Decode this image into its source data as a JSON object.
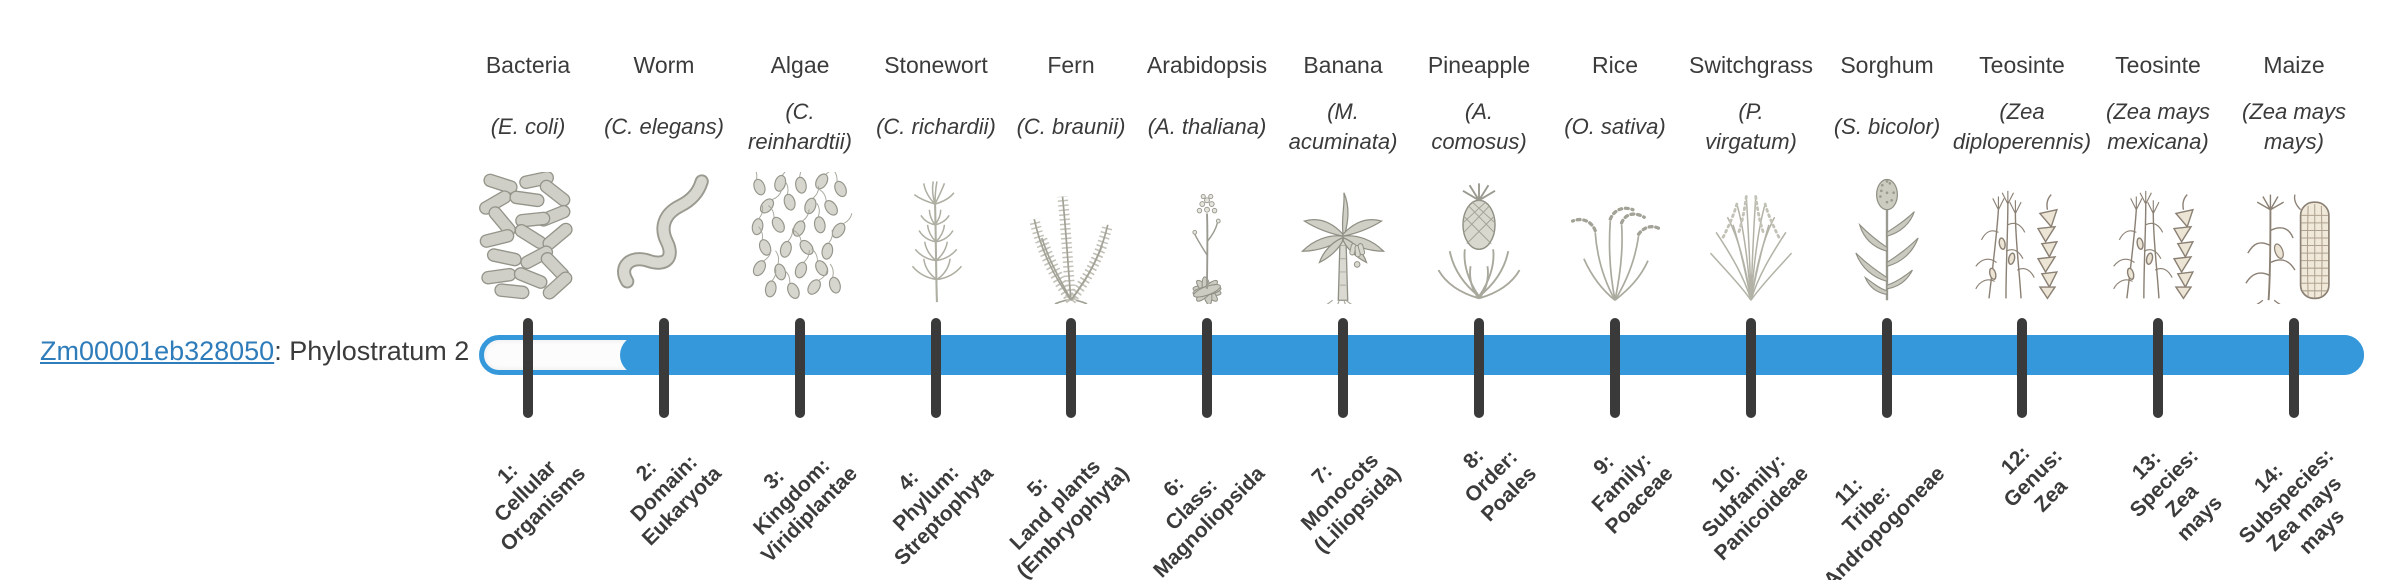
{
  "figure": {
    "gene_link_text": "Zm00001eb328050",
    "gene_suffix": ": Phylostratum 2",
    "phylostratum": 2
  },
  "timeline": {
    "total_strata": 14,
    "filled_from_stratum": 2,
    "bar_color": "#3598db",
    "tick_color": "#3a3a3a",
    "link_color": "#2e7cba",
    "text_color": "#3b3b3b"
  },
  "organisms": [
    {
      "label": "Bacteria",
      "sci_name": "(E. coli)",
      "icon": "bacteria-icon",
      "stratum_label": "1:\nCellular\nOrganisms"
    },
    {
      "label": "Worm",
      "sci_name": "(C. elegans)",
      "icon": "worm-icon",
      "stratum_label": "2:\nDomain:\nEukaryota"
    },
    {
      "label": "Algae",
      "sci_name": "(C.\nreinhardtii)",
      "icon": "algae-icon",
      "stratum_label": "3:\nKingdom:\nViridiplantae"
    },
    {
      "label": "Stonewort",
      "sci_name": "(C. richardii)",
      "icon": "stonewort-icon",
      "stratum_label": "4:\nPhylum:\nStreptophyta"
    },
    {
      "label": "Fern",
      "sci_name": "(C. braunii)",
      "icon": "fern-icon",
      "stratum_label": "5:\nLand plants\n(Embryophyta)"
    },
    {
      "label": "Arabidopsis",
      "sci_name": "(A. thaliana)",
      "icon": "arabidopsis-icon",
      "stratum_label": "6:\nClass:\nMagnoliopsida"
    },
    {
      "label": "Banana",
      "sci_name": "(M.\nacuminata)",
      "icon": "banana-icon",
      "stratum_label": "7:\nMonocots\n(Liliopsida)"
    },
    {
      "label": "Pineapple",
      "sci_name": "(A.\ncomosus)",
      "icon": "pineapple-icon",
      "stratum_label": "8:\nOrder:\nPoales"
    },
    {
      "label": "Rice",
      "sci_name": "(O. sativa)",
      "icon": "rice-icon",
      "stratum_label": "9:\nFamily:\nPoaceae"
    },
    {
      "label": "Switchgrass",
      "sci_name": "(P.\nvirgatum)",
      "icon": "switchgrass-icon",
      "stratum_label": "10:\nSubfamily:\nPanicoideae"
    },
    {
      "label": "Sorghum",
      "sci_name": "(S. bicolor)",
      "icon": "sorghum-icon",
      "stratum_label": "11:\nTribe:\nAndropogoneae"
    },
    {
      "label": "Teosinte",
      "sci_name": "(Zea\ndiploperennis)",
      "icon": "teosinte-diplo-icon",
      "stratum_label": "12:\nGenus:\nZea"
    },
    {
      "label": "Teosinte",
      "sci_name": "(Zea mays\nmexicana)",
      "icon": "teosinte-mex-icon",
      "stratum_label": "13:\nSpecies:\nZea\nmays"
    },
    {
      "label": "Maize",
      "sci_name": "(Zea mays\nmays)",
      "icon": "maize-icon",
      "stratum_label": "14:\nSubspecies:\nZea mays\nmays"
    }
  ]
}
